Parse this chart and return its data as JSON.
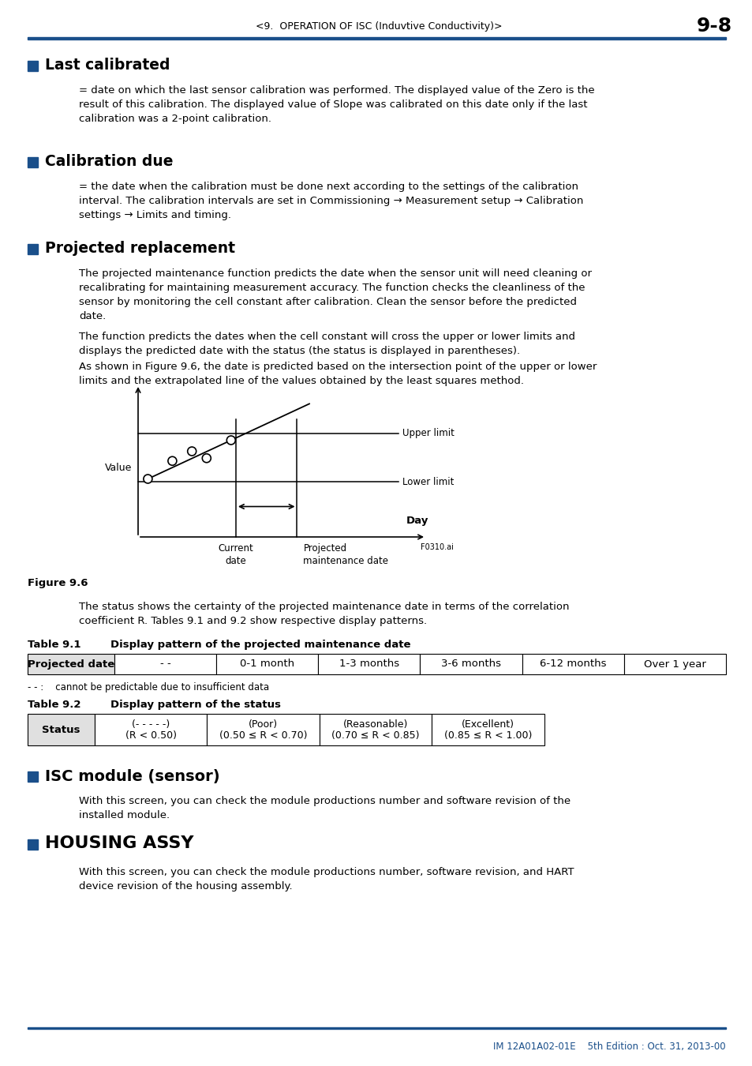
{
  "header_text": "<9.  OPERATION OF ISC (Induvtive Conductivity)>",
  "page_num": "9-8",
  "blue_line_color": "#1a4f8a",
  "bullet_color": "#1a4f8a",
  "section1_bullet": "Last calibrated",
  "section1_text": "= date on which the last sensor calibration was performed. The displayed value of the Zero is the\nresult of this calibration. The displayed value of Slope was calibrated on this date only if the last\ncalibration was a 2-point calibration.",
  "section2_bullet": "Calibration due",
  "section2_text": "= the date when the calibration must be done next according to the settings of the calibration\ninterval. The calibration intervals are set in Commissioning → Measurement setup → Calibration\nsettings → Limits and timing.",
  "section3_bullet": "Projected replacement",
  "section3_para1": "The projected maintenance function predicts the date when the sensor unit will need cleaning or\nrecalibrating for maintaining measurement accuracy. The function checks the cleanliness of the\nsensor by monitoring the cell constant after calibration. Clean the sensor before the predicted\ndate.",
  "section3_para2": "The function predicts the dates when the cell constant will cross the upper or lower limits and\ndisplays the predicted date with the status (the status is displayed in parentheses).",
  "section3_para3": "As shown in Figure 9.6, the date is predicted based on the intersection point of the upper or lower\nlimits and the extrapolated line of the values obtained by the least squares method.",
  "figure_caption": "Figure 9.6",
  "fig_label_f0310": "F0310.ai",
  "fig_upper_limit": "Upper limit",
  "fig_lower_limit": "Lower limit",
  "fig_value_label": "Value",
  "fig_current_date": "Current\ndate",
  "fig_projected_date": "Projected\nmaintenance date",
  "fig_day": "Day",
  "status_text1": "The status shows the certainty of the projected maintenance date in terms of the correlation\ncoefficient R. Tables 9.1 and 9.2 show respective display patterns.",
  "table1_title_num": "Table 9.1",
  "table1_title_text": "Display pattern of the projected maintenance date",
  "table1_col0": "Projected date",
  "table1_cols": [
    "- -",
    "0-1 month",
    "1-3 months",
    "3-6 months",
    "6-12 months",
    "Over 1 year"
  ],
  "table1_note": "- - :    cannot be predictable due to insufficient data",
  "table2_title_num": "Table 9.2",
  "table2_title_text": "Display pattern of the status",
  "table2_col0": "Status",
  "table2_cols": [
    "(- - - - -)\n(R < 0.50)",
    "(Poor)\n(0.50 ≤ R < 0.70)",
    "(Reasonable)\n(0.70 ≤ R < 0.85)",
    "(Excellent)\n(0.85 ≤ R < 1.00)"
  ],
  "section4_bullet": "ISC module (sensor)",
  "section4_text": "With this screen, you can check the module productions number and software revision of the\ninstalled module.",
  "section5_bullet": "HOUSING ASSY",
  "section5_text": "With this screen, you can check the module productions number, software revision, and HART\ndevice revision of the housing assembly.",
  "footer_line_color": "#1a4f8a",
  "footer_text": "IM 12A01A02-01E    5th Edition : Oct. 31, 2013-00",
  "footer_color": "#1a4f8a"
}
